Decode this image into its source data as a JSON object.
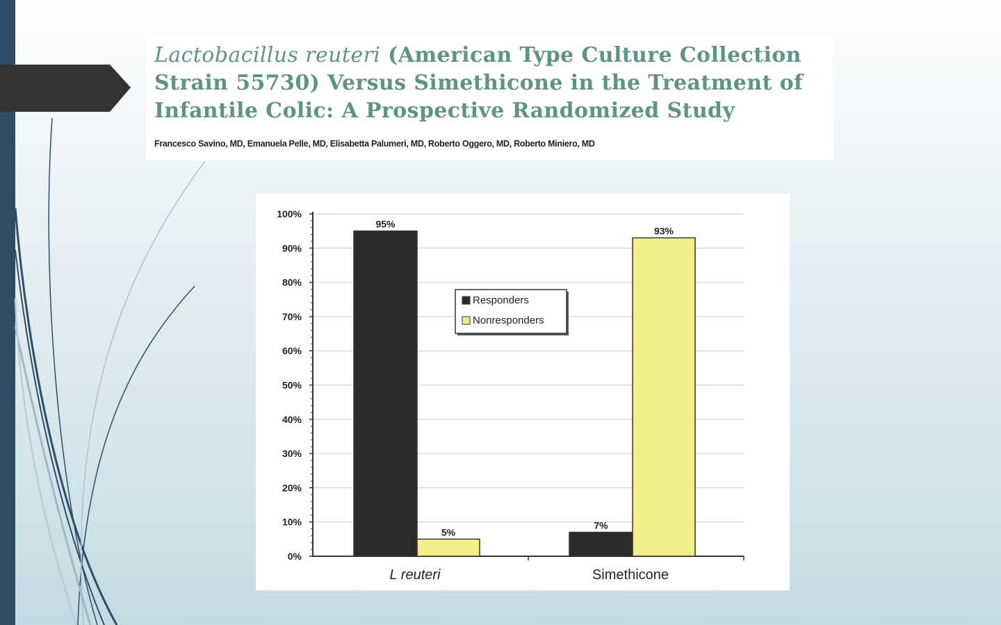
{
  "paper": {
    "title_italic": "Lactobacillus reuteri",
    "title_rest_line1": " (American Type Culture Collection",
    "title_line2": "Strain 55730) Versus Simethicone in the Treatment of",
    "title_line3": "Infantile Colic: A Prospective Randomized Study",
    "authors": "Francesco Savino, MD, Emanuela Pelle, MD, Elisabetta Palumeri, MD, Roberto Oggero, MD, Roberto Miniero, MD"
  },
  "colors": {
    "slide_bar": "#2c4d65",
    "arrow": "#333333",
    "title_text": "#5f9482",
    "responders": "#2b2b2b",
    "nonresponders": "#f2ef8a"
  },
  "chart_data": {
    "type": "bar",
    "categories": [
      "L reuteri",
      "Simethicone"
    ],
    "series": [
      {
        "name": "Responders",
        "values": [
          95,
          7
        ],
        "labels": [
          "95%",
          "7%"
        ],
        "color": "#2b2b2b"
      },
      {
        "name": "Nonresponders",
        "values": [
          5,
          93
        ],
        "labels": [
          "5%",
          "93%"
        ],
        "color": "#f2ef8a"
      }
    ],
    "ylim": [
      0,
      100
    ],
    "y_ticks": [
      "0%",
      "10%",
      "20%",
      "30%",
      "40%",
      "50%",
      "60%",
      "70%",
      "80%",
      "90%",
      "100%"
    ],
    "grid": true,
    "legend_position": "center"
  }
}
